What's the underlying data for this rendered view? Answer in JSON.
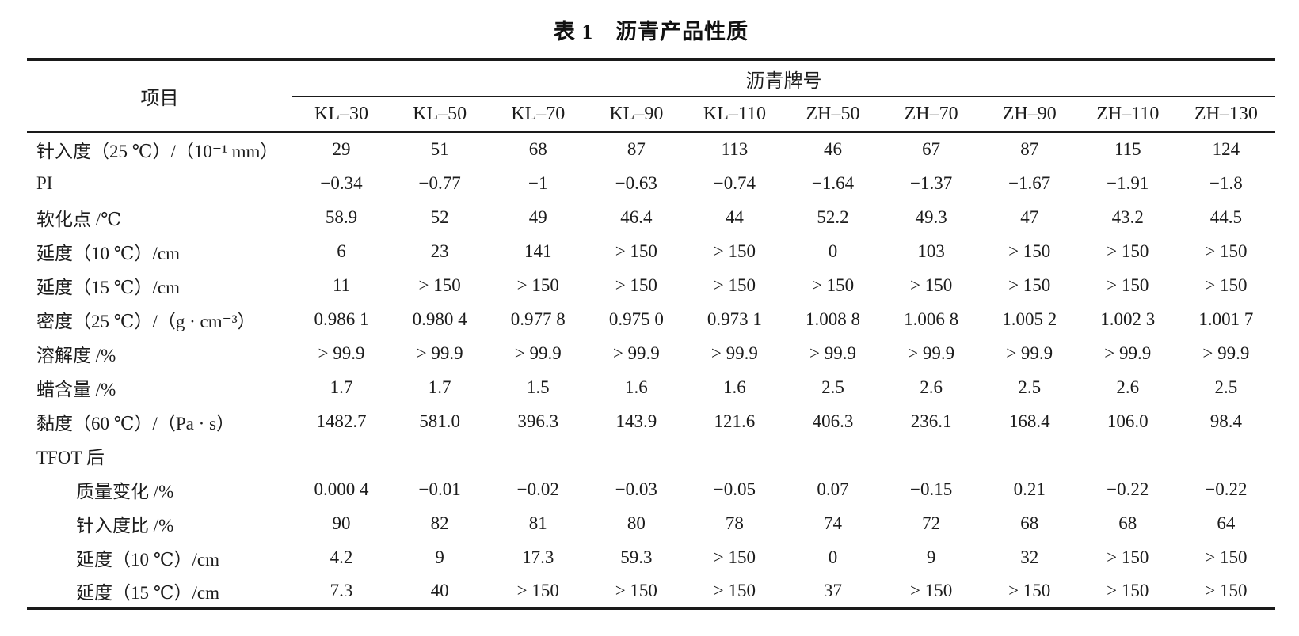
{
  "page": {
    "background_color": "#ffffff",
    "text_color": "#1c1c1c",
    "rule_color": "#1a1a1a"
  },
  "title": "表 1　沥青产品性质",
  "table": {
    "item_header": "项目",
    "group_header": "沥青牌号",
    "columns": [
      "KL–30",
      "KL–50",
      "KL–70",
      "KL–90",
      "KL–110",
      "ZH–50",
      "ZH–70",
      "ZH–90",
      "ZH–110",
      "ZH–130"
    ],
    "rows": [
      {
        "label": "针入度（25 ℃）/（10⁻¹ mm）",
        "indent": false,
        "values": [
          "29",
          "51",
          "68",
          "87",
          "113",
          "46",
          "67",
          "87",
          "115",
          "124"
        ]
      },
      {
        "label": "PI",
        "indent": false,
        "values": [
          "−0.34",
          "−0.77",
          "−1",
          "−0.63",
          "−0.74",
          "−1.64",
          "−1.37",
          "−1.67",
          "−1.91",
          "−1.8"
        ]
      },
      {
        "label": "软化点 /℃",
        "indent": false,
        "values": [
          "58.9",
          "52",
          "49",
          "46.4",
          "44",
          "52.2",
          "49.3",
          "47",
          "43.2",
          "44.5"
        ]
      },
      {
        "label": "延度（10 ℃）/cm",
        "indent": false,
        "values": [
          "6",
          "23",
          "141",
          "> 150",
          "> 150",
          "0",
          "103",
          "> 150",
          "> 150",
          "> 150"
        ]
      },
      {
        "label": "延度（15 ℃）/cm",
        "indent": false,
        "values": [
          "11",
          "> 150",
          "> 150",
          "> 150",
          "> 150",
          "> 150",
          "> 150",
          "> 150",
          "> 150",
          "> 150"
        ]
      },
      {
        "label": "密度（25 ℃）/（g · cm⁻³）",
        "indent": false,
        "values": [
          "0.986 1",
          "0.980 4",
          "0.977 8",
          "0.975 0",
          "0.973 1",
          "1.008 8",
          "1.006 8",
          "1.005 2",
          "1.002 3",
          "1.001 7"
        ]
      },
      {
        "label": "溶解度 /%",
        "indent": false,
        "values": [
          "> 99.9",
          "> 99.9",
          "> 99.9",
          "> 99.9",
          "> 99.9",
          "> 99.9",
          "> 99.9",
          "> 99.9",
          "> 99.9",
          "> 99.9"
        ]
      },
      {
        "label": "蜡含量 /%",
        "indent": false,
        "values": [
          "1.7",
          "1.7",
          "1.5",
          "1.6",
          "1.6",
          "2.5",
          "2.6",
          "2.5",
          "2.6",
          "2.5"
        ]
      },
      {
        "label": "黏度（60 ℃）/（Pa · s）",
        "indent": false,
        "values": [
          "1482.7",
          "581.0",
          "396.3",
          "143.9",
          "121.6",
          "406.3",
          "236.1",
          "168.4",
          "106.0",
          "98.4"
        ]
      },
      {
        "label": "TFOT 后",
        "indent": false,
        "values": [
          "",
          "",
          "",
          "",
          "",
          "",
          "",
          "",
          "",
          ""
        ]
      },
      {
        "label": "质量变化 /%",
        "indent": true,
        "values": [
          "0.000 4",
          "−0.01",
          "−0.02",
          "−0.03",
          "−0.05",
          "0.07",
          "−0.15",
          "0.21",
          "−0.22",
          "−0.22"
        ]
      },
      {
        "label": "针入度比 /%",
        "indent": true,
        "values": [
          "90",
          "82",
          "81",
          "80",
          "78",
          "74",
          "72",
          "68",
          "68",
          "64"
        ]
      },
      {
        "label": "延度（10 ℃）/cm",
        "indent": true,
        "values": [
          "4.2",
          "9",
          "17.3",
          "59.3",
          "> 150",
          "0",
          "9",
          "32",
          "> 150",
          "> 150"
        ]
      },
      {
        "label": "延度（15 ℃）/cm",
        "indent": true,
        "values": [
          "7.3",
          "40",
          "> 150",
          "> 150",
          "> 150",
          "37",
          "> 150",
          "> 150",
          "> 150",
          "> 150"
        ]
      }
    ]
  }
}
